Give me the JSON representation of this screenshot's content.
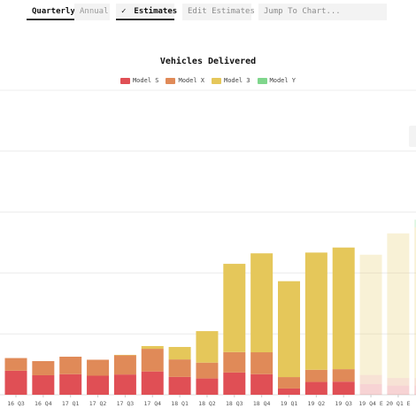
{
  "toolbar": {
    "tab_quarterly": "Quarterly",
    "tab_annual": "Annual",
    "estimates_label": "Estimates",
    "edit_estimates_label": "Edit Estimates",
    "jump_placeholder": "Jump To Chart..."
  },
  "chart_data": {
    "type": "bar",
    "stacked": true,
    "title": "Vehicles Delivered",
    "xlabel": "",
    "ylabel": "",
    "grid": true,
    "legend_position": "top-center",
    "categories": [
      "16 Q3",
      "16 Q4",
      "17 Q1",
      "17 Q2",
      "17 Q3",
      "17 Q4",
      "18 Q1",
      "18 Q2",
      "18 Q3",
      "18 Q4",
      "19 Q1",
      "19 Q2",
      "19 Q3",
      "19 Q4 E",
      "20 Q1 E",
      "20"
    ],
    "estimate_from_index": 13,
    "series": [
      {
        "name": "Model S",
        "color": "#e04f55",
        "values": [
          15.8,
          12.8,
          13.5,
          12.5,
          13.3,
          15.3,
          11.7,
          10.7,
          14.6,
          13.5,
          4.1,
          8.4,
          8.6,
          7,
          6,
          6
        ]
      },
      {
        "name": "Model X",
        "color": "#e08a58",
        "values": [
          8.3,
          9.3,
          11.5,
          10.5,
          12.6,
          14.9,
          11.5,
          10.4,
          13.4,
          14.4,
          7.5,
          8,
          8.2,
          6,
          5,
          5
        ]
      },
      {
        "name": "Model 3",
        "color": "#e5c75a",
        "values": [
          0,
          0,
          0,
          0,
          0.3,
          1.8,
          8.2,
          20.7,
          58,
          65,
          63,
          77,
          79.9,
          79,
          95,
          99
        ]
      },
      {
        "name": "Model Y",
        "color": "#7fd68c",
        "values": [
          0,
          0,
          0,
          0,
          0,
          0,
          0,
          0,
          0,
          0,
          0,
          0,
          0,
          0,
          0,
          5
        ]
      }
    ],
    "ylim": [
      0,
      200
    ]
  }
}
